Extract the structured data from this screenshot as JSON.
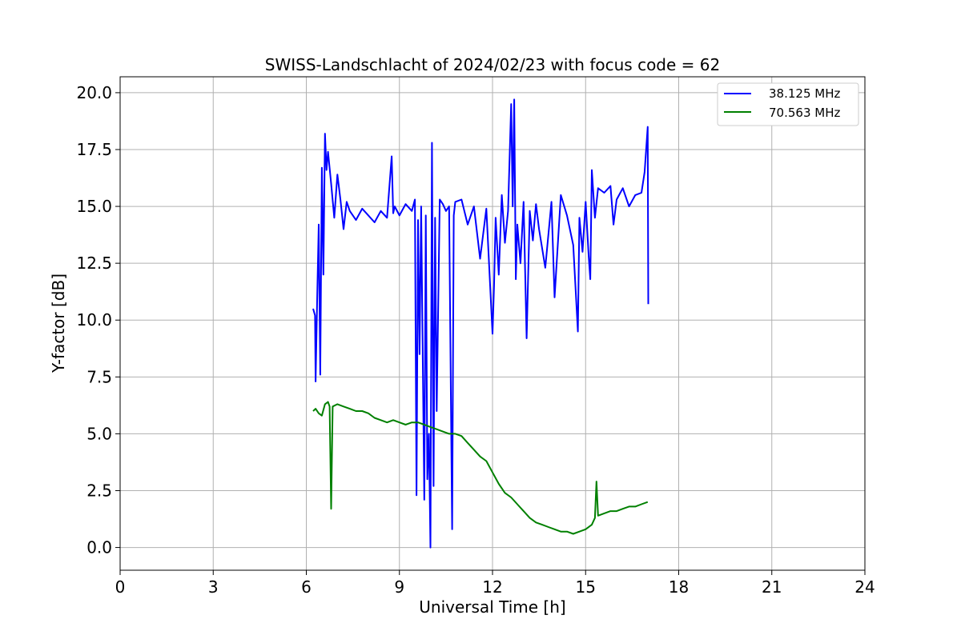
{
  "chart_data": {
    "type": "line",
    "title": "SWISS-Landschlacht of 2024/02/23 with focus code = 62",
    "xlabel": "Universal Time [h]",
    "ylabel": "Y-factor [dB]",
    "xlim": [
      0,
      24
    ],
    "ylim": [
      -1.0,
      20.7
    ],
    "x_ticks": [
      0,
      3,
      6,
      9,
      12,
      15,
      18,
      21,
      24
    ],
    "x_tick_labels": [
      "0",
      "3",
      "6",
      "9",
      "12",
      "15",
      "18",
      "21",
      "24"
    ],
    "y_ticks": [
      0,
      2.5,
      5,
      7.5,
      10,
      12.5,
      15,
      17.5,
      20
    ],
    "y_tick_labels": [
      "0.0",
      "2.5",
      "5.0",
      "7.5",
      "10.0",
      "12.5",
      "15.0",
      "17.5",
      "20.0"
    ],
    "grid": true,
    "legend_position": "top-right",
    "series": [
      {
        "name": "38.125 MHz",
        "color": "#0000ff",
        "x": [
          6.22,
          6.28,
          6.3,
          6.35,
          6.4,
          6.45,
          6.5,
          6.55,
          6.6,
          6.65,
          6.7,
          6.8,
          6.9,
          7.0,
          7.1,
          7.2,
          7.3,
          7.4,
          7.6,
          7.8,
          8.0,
          8.2,
          8.4,
          8.6,
          8.75,
          8.8,
          8.85,
          9.0,
          9.2,
          9.4,
          9.5,
          9.55,
          9.6,
          9.65,
          9.7,
          9.8,
          9.85,
          9.9,
          9.95,
          10.0,
          10.05,
          10.1,
          10.15,
          10.2,
          10.3,
          10.4,
          10.5,
          10.6,
          10.7,
          10.75,
          10.8,
          11.0,
          11.2,
          11.4,
          11.6,
          11.8,
          12.0,
          12.05,
          12.1,
          12.2,
          12.3,
          12.4,
          12.5,
          12.6,
          12.65,
          12.7,
          12.75,
          12.8,
          12.9,
          13.0,
          13.1,
          13.2,
          13.3,
          13.4,
          13.5,
          13.7,
          13.9,
          14.0,
          14.2,
          14.4,
          14.6,
          14.75,
          14.8,
          14.9,
          15.0,
          15.1,
          15.15,
          15.2,
          15.3,
          15.4,
          15.6,
          15.8,
          15.9,
          16.0,
          16.2,
          16.4,
          16.6,
          16.8,
          16.9,
          17.0,
          17.02
        ],
        "y": [
          10.5,
          10.2,
          7.3,
          11.0,
          14.2,
          7.6,
          16.7,
          12.0,
          18.2,
          16.6,
          17.4,
          16.0,
          14.5,
          16.4,
          15.3,
          14.0,
          15.2,
          14.8,
          14.4,
          14.9,
          14.6,
          14.3,
          14.8,
          14.5,
          17.2,
          14.7,
          15.0,
          14.6,
          15.1,
          14.8,
          15.3,
          2.3,
          14.4,
          8.5,
          15.0,
          2.1,
          14.6,
          3.0,
          5.0,
          0.0,
          17.8,
          2.7,
          14.5,
          6.0,
          15.3,
          15.1,
          14.8,
          15.0,
          0.8,
          14.6,
          15.2,
          15.3,
          14.2,
          15.0,
          12.7,
          14.9,
          9.4,
          11.5,
          14.5,
          12.0,
          15.5,
          13.4,
          14.8,
          19.5,
          15.0,
          19.7,
          11.8,
          14.2,
          12.5,
          15.2,
          9.2,
          14.8,
          13.5,
          15.1,
          14.0,
          12.3,
          15.2,
          11.0,
          15.5,
          14.6,
          13.3,
          9.5,
          14.5,
          13.0,
          15.2,
          12.8,
          11.8,
          16.6,
          14.5,
          15.8,
          15.6,
          15.9,
          14.2,
          15.3,
          15.8,
          15.0,
          15.5,
          15.6,
          16.5,
          18.5,
          10.7
        ]
      },
      {
        "name": "70.563 MHz",
        "color": "#008000",
        "x": [
          6.22,
          6.3,
          6.4,
          6.5,
          6.6,
          6.7,
          6.75,
          6.8,
          6.85,
          7.0,
          7.2,
          7.4,
          7.6,
          7.8,
          8.0,
          8.2,
          8.4,
          8.6,
          8.8,
          9.0,
          9.2,
          9.4,
          9.6,
          9.8,
          10.0,
          10.2,
          10.4,
          10.6,
          10.8,
          11.0,
          11.2,
          11.4,
          11.6,
          11.8,
          12.0,
          12.2,
          12.4,
          12.6,
          12.8,
          13.0,
          13.2,
          13.4,
          13.6,
          13.8,
          14.0,
          14.2,
          14.4,
          14.6,
          14.8,
          15.0,
          15.2,
          15.3,
          15.35,
          15.4,
          15.6,
          15.8,
          16.0,
          16.2,
          16.4,
          16.6,
          16.8,
          17.0
        ],
        "y": [
          6.0,
          6.1,
          5.9,
          5.8,
          6.3,
          6.4,
          6.2,
          1.7,
          6.2,
          6.3,
          6.2,
          6.1,
          6.0,
          6.0,
          5.9,
          5.7,
          5.6,
          5.5,
          5.6,
          5.5,
          5.4,
          5.5,
          5.5,
          5.4,
          5.3,
          5.2,
          5.1,
          5.0,
          5.0,
          4.9,
          4.6,
          4.3,
          4.0,
          3.8,
          3.3,
          2.8,
          2.4,
          2.2,
          1.9,
          1.6,
          1.3,
          1.1,
          1.0,
          0.9,
          0.8,
          0.7,
          0.7,
          0.6,
          0.7,
          0.8,
          1.0,
          1.3,
          2.9,
          1.4,
          1.5,
          1.6,
          1.6,
          1.7,
          1.8,
          1.8,
          1.9,
          2.0
        ]
      }
    ]
  }
}
